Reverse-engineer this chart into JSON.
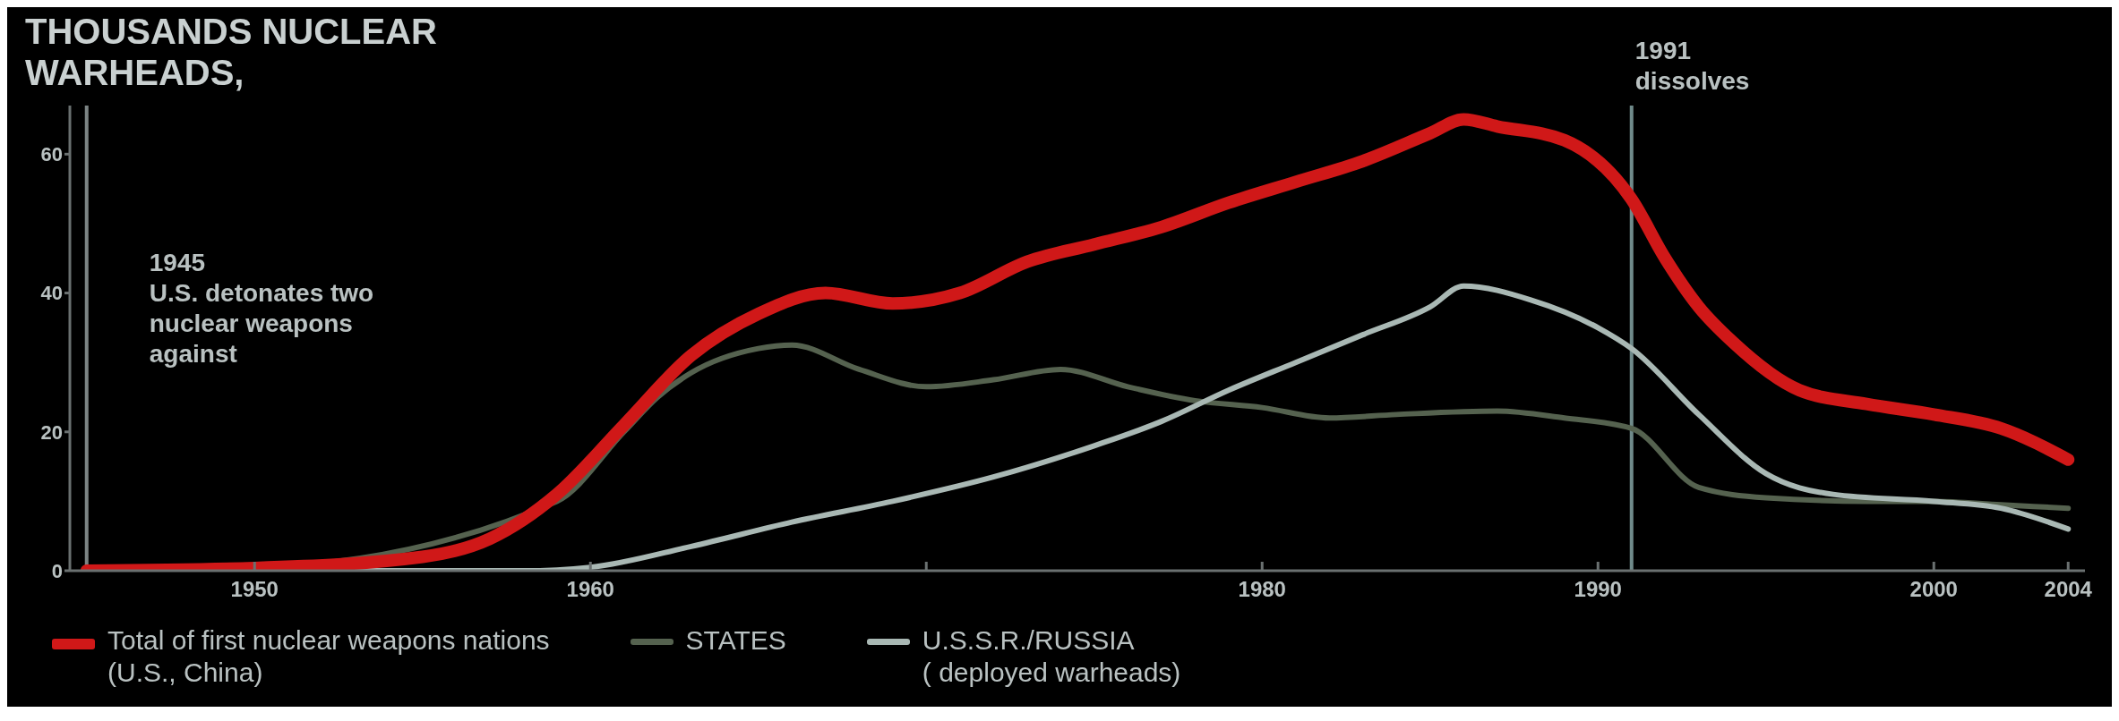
{
  "chart_data": {
    "type": "line",
    "title": "THOUSANDS NUCLEAR\nWARHEADS,",
    "xlim": [
      1944.5,
      2004.5
    ],
    "xticks": [
      1950,
      1960,
      {
        "value": 1970,
        "label": null
      },
      1980,
      1990,
      2000,
      2004
    ],
    "ylim": [
      0,
      67
    ],
    "yticks": [
      0,
      20,
      40,
      60
    ],
    "legend": "bottom",
    "marker": "none",
    "line_style": "solid",
    "series": [
      {
        "name": "Total of first nuclear weapons nations\n(U.S., China)",
        "color": "#d01818",
        "x": [
          1945,
          1950,
          1955,
          1957,
          1959,
          1961,
          1963,
          1965,
          1967,
          1969,
          1971,
          1973,
          1975,
          1977,
          1979,
          1981,
          1983,
          1985,
          1986,
          1987,
          1989,
          1991,
          1992,
          1993,
          1994,
          1996,
          1998,
          2000,
          2002,
          2004
        ],
        "values": [
          0,
          0.4,
          2,
          4.6,
          11,
          21,
          31,
          37,
          40,
          38.5,
          40,
          44.5,
          47,
          49.5,
          53,
          56,
          59,
          63,
          65,
          64,
          62,
          53.5,
          45,
          38,
          33,
          26,
          24,
          22.5,
          20.5,
          16
        ]
      },
      {
        "name": "STATES",
        "color": "#55624f",
        "x": [
          1945,
          1950,
          1959,
          1961,
          1962,
          1963,
          1965,
          1966,
          1968,
          1970,
          1972,
          1974,
          1976,
          1978,
          1980,
          1982,
          1984,
          1987,
          1989,
          1991,
          1993,
          1995,
          1998,
          2000,
          2002,
          2004
        ],
        "values": [
          0,
          0.4,
          10,
          20,
          25,
          28.5,
          32,
          32.5,
          29,
          26.5,
          27.5,
          29,
          26.5,
          24.5,
          23.5,
          22,
          22.5,
          23,
          22,
          20.5,
          12,
          10.5,
          10,
          10,
          9.5,
          9
        ]
      },
      {
        "name": "U.S.S.R./RUSSIA\n( deployed warheads)",
        "color": "#a9b8b4",
        "x": [
          1945,
          1958,
          1960,
          1963,
          1966,
          1969,
          1972,
          1975,
          1977,
          1979,
          1981,
          1983,
          1985,
          1986,
          1988,
          1990,
          1991,
          1993,
          1995,
          1997,
          2000,
          2002,
          2004
        ],
        "values": [
          0,
          0,
          0.5,
          3.5,
          7,
          10,
          13.5,
          18,
          21.5,
          26,
          30,
          34,
          38,
          41,
          39,
          35,
          32,
          22.5,
          14,
          11,
          10,
          9,
          6
        ]
      }
    ],
    "ref_lines": [
      {
        "axis": "x",
        "value": 1945,
        "label": "1945\nU.S. detonates two\nnuclear weapons\nagainst",
        "color": "#7c8484"
      },
      {
        "axis": "x",
        "value": 1991,
        "label": "1991\ndissolves",
        "color": "#6f8a8a"
      }
    ]
  }
}
